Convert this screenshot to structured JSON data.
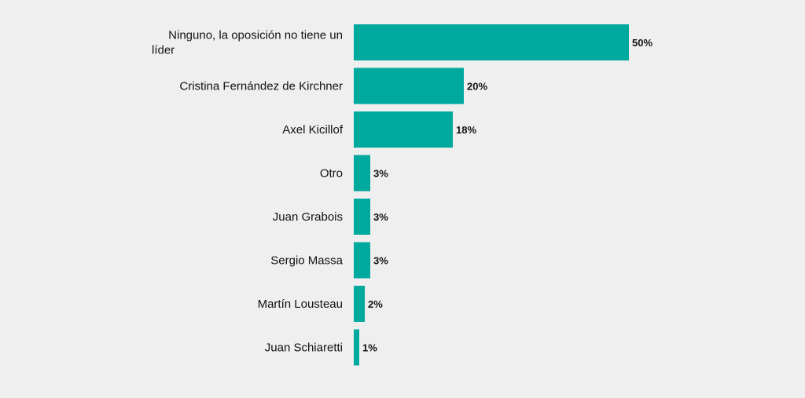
{
  "chart_data": {
    "type": "bar",
    "orientation": "horizontal",
    "categories": [
      [
        "Ninguno, la oposición no tiene un",
        "líder"
      ],
      [
        "Cristina Fernández de Kirchner"
      ],
      [
        "Axel Kicillof"
      ],
      [
        "Otro"
      ],
      [
        "Juan Grabois"
      ],
      [
        "Sergio Massa"
      ],
      [
        "Martín Lousteau"
      ],
      [
        "Juan Schiaretti"
      ]
    ],
    "values": [
      50,
      20,
      18,
      3,
      3,
      3,
      2,
      1
    ],
    "value_labels": [
      "50%",
      "20%",
      "18%",
      "3%",
      "3%",
      "3%",
      "2%",
      "1%"
    ],
    "unit": "%",
    "xlim": [
      0,
      50
    ],
    "grid": false,
    "colors": {
      "bar": "#00a99d",
      "background": "#efefef",
      "text": "#111111"
    }
  }
}
